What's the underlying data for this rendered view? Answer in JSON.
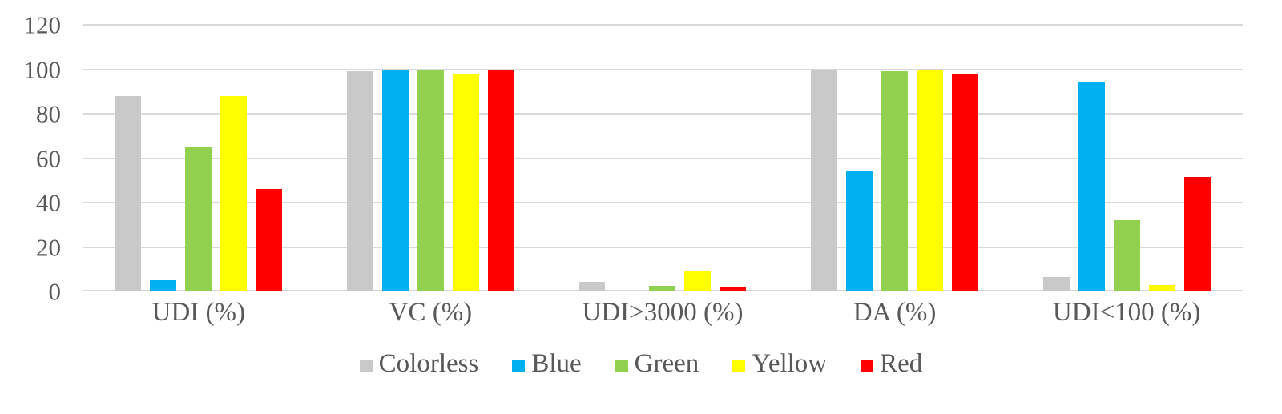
{
  "chart_data": {
    "type": "bar",
    "title": "",
    "categories": [
      "UDI (%)",
      "VC (%)",
      "UDI>3000 (%)",
      "DA (%)",
      "UDI<100 (%)"
    ],
    "series": [
      {
        "name": "Colorless",
        "color": "#c9c9c9",
        "values": [
          88,
          99,
          4.5,
          100,
          6.5
        ]
      },
      {
        "name": "Blue",
        "color": "#00b0f0",
        "values": [
          5,
          100,
          0,
          54.5,
          94.5
        ]
      },
      {
        "name": "Green",
        "color": "#92d050",
        "values": [
          65,
          100,
          2.5,
          99,
          32
        ]
      },
      {
        "name": "Yellow",
        "color": "#ffff00",
        "values": [
          88,
          97.5,
          9,
          100,
          3
        ]
      },
      {
        "name": "Red",
        "color": "#ff0000",
        "values": [
          46,
          100,
          2,
          98,
          51.5
        ]
      }
    ],
    "xlabel": "",
    "ylabel": "",
    "ylim": [
      0,
      120
    ],
    "yticks": [
      0,
      20,
      40,
      60,
      80,
      100,
      120
    ],
    "grid": true,
    "legend_position": "bottom",
    "legend_labels": [
      "Colorless",
      "Blue",
      "Green",
      "Yellow",
      "Red"
    ],
    "axis_text_color": "#595959",
    "gridline_color": "#d9d9d9",
    "background_color": "#ffffff"
  }
}
